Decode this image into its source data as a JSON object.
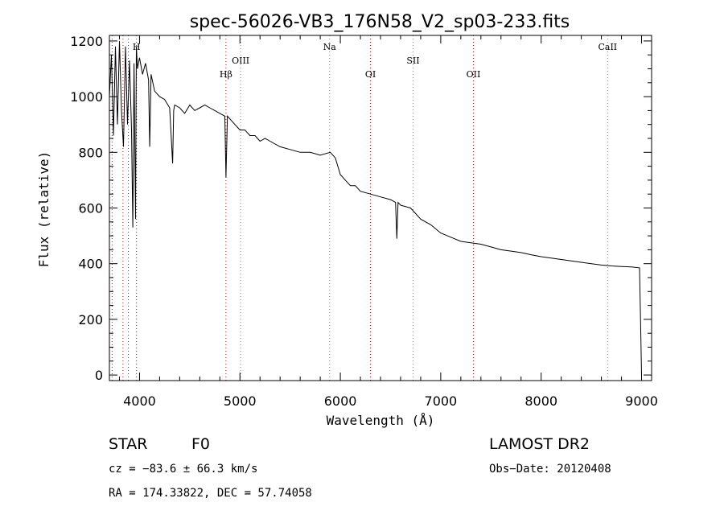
{
  "chart_data": {
    "type": "line",
    "title": "spec-56026-VB3_176N58_V2_sp03-233.fits",
    "xlabel": "Wavelength (Å)",
    "ylabel": "Flux (relative)",
    "xlim": [
      3700,
      9100
    ],
    "ylim": [
      -20,
      1220
    ],
    "xticks": [
      4000,
      5000,
      6000,
      7000,
      8000,
      9000
    ],
    "yticks": [
      0,
      200,
      400,
      600,
      800,
      1000,
      1200
    ],
    "series": [
      {
        "name": "flux",
        "x": [
          3700,
          3720,
          3740,
          3760,
          3780,
          3800,
          3820,
          3840,
          3860,
          3880,
          3900,
          3920,
          3933,
          3945,
          3960,
          3968,
          3980,
          4000,
          4030,
          4060,
          4090,
          4101,
          4115,
          4150,
          4200,
          4250,
          4300,
          4330,
          4340,
          4350,
          4400,
          4450,
          4500,
          4550,
          4600,
          4650,
          4700,
          4750,
          4800,
          4850,
          4861,
          4875,
          4900,
          4950,
          5000,
          5050,
          5100,
          5150,
          5200,
          5250,
          5300,
          5400,
          5500,
          5600,
          5700,
          5800,
          5900,
          5950,
          6000,
          6050,
          6100,
          6150,
          6200,
          6300,
          6400,
          6500,
          6550,
          6563,
          6575,
          6600,
          6700,
          6800,
          6900,
          7000,
          7100,
          7200,
          7300,
          7400,
          7500,
          7600,
          7700,
          7800,
          7900,
          8000,
          8100,
          8200,
          8300,
          8400,
          8500,
          8600,
          8700,
          8800,
          8900,
          8980,
          8990,
          9000
        ],
        "values": [
          1000,
          1150,
          860,
          1180,
          900,
          1200,
          950,
          820,
          1180,
          900,
          1130,
          880,
          530,
          1120,
          560,
          1180,
          1100,
          1140,
          1080,
          1120,
          1060,
          820,
          1080,
          1020,
          1000,
          990,
          960,
          760,
          950,
          970,
          960,
          940,
          970,
          950,
          960,
          970,
          960,
          950,
          940,
          930,
          710,
          930,
          920,
          900,
          880,
          880,
          860,
          860,
          840,
          850,
          840,
          820,
          810,
          800,
          800,
          790,
          800,
          780,
          720,
          700,
          680,
          680,
          660,
          650,
          640,
          630,
          620,
          490,
          620,
          610,
          600,
          560,
          540,
          510,
          495,
          480,
          475,
          470,
          460,
          450,
          445,
          440,
          432,
          425,
          420,
          415,
          410,
          405,
          400,
          395,
          392,
          390,
          388,
          385,
          190,
          0
        ]
      }
    ],
    "lines": [
      {
        "label": "H",
        "wavelength": 3970,
        "row": 0
      },
      {
        "label": "OIII",
        "wavelength": 5007,
        "row": 1
      },
      {
        "label": "Hβ",
        "wavelength": 4861,
        "row": 2
      },
      {
        "label": "Na",
        "wavelength": 5893,
        "row": 0
      },
      {
        "label": "OI",
        "wavelength": 6300,
        "row": 2
      },
      {
        "label": "SII",
        "wavelength": 6724,
        "row": 1
      },
      {
        "label": "OII",
        "wavelength": 7325,
        "row": 2
      },
      {
        "label": "CaII",
        "wavelength": 8662,
        "row": 0
      }
    ],
    "extra_lines": [
      3727,
      3835,
      3889
    ]
  },
  "info": {
    "object_class": "STAR",
    "subclass": "F0",
    "survey": "LAMOST DR2",
    "cz": "cz = −83.6 ± 66.3 km/s",
    "obs_date": "Obs−Date: 20120408",
    "coords": "RA = 174.33822, DEC =  57.74058"
  },
  "colors": {
    "spectrum": "#000000",
    "emission_line": "#cc0000",
    "absorption_line": "#888888"
  }
}
